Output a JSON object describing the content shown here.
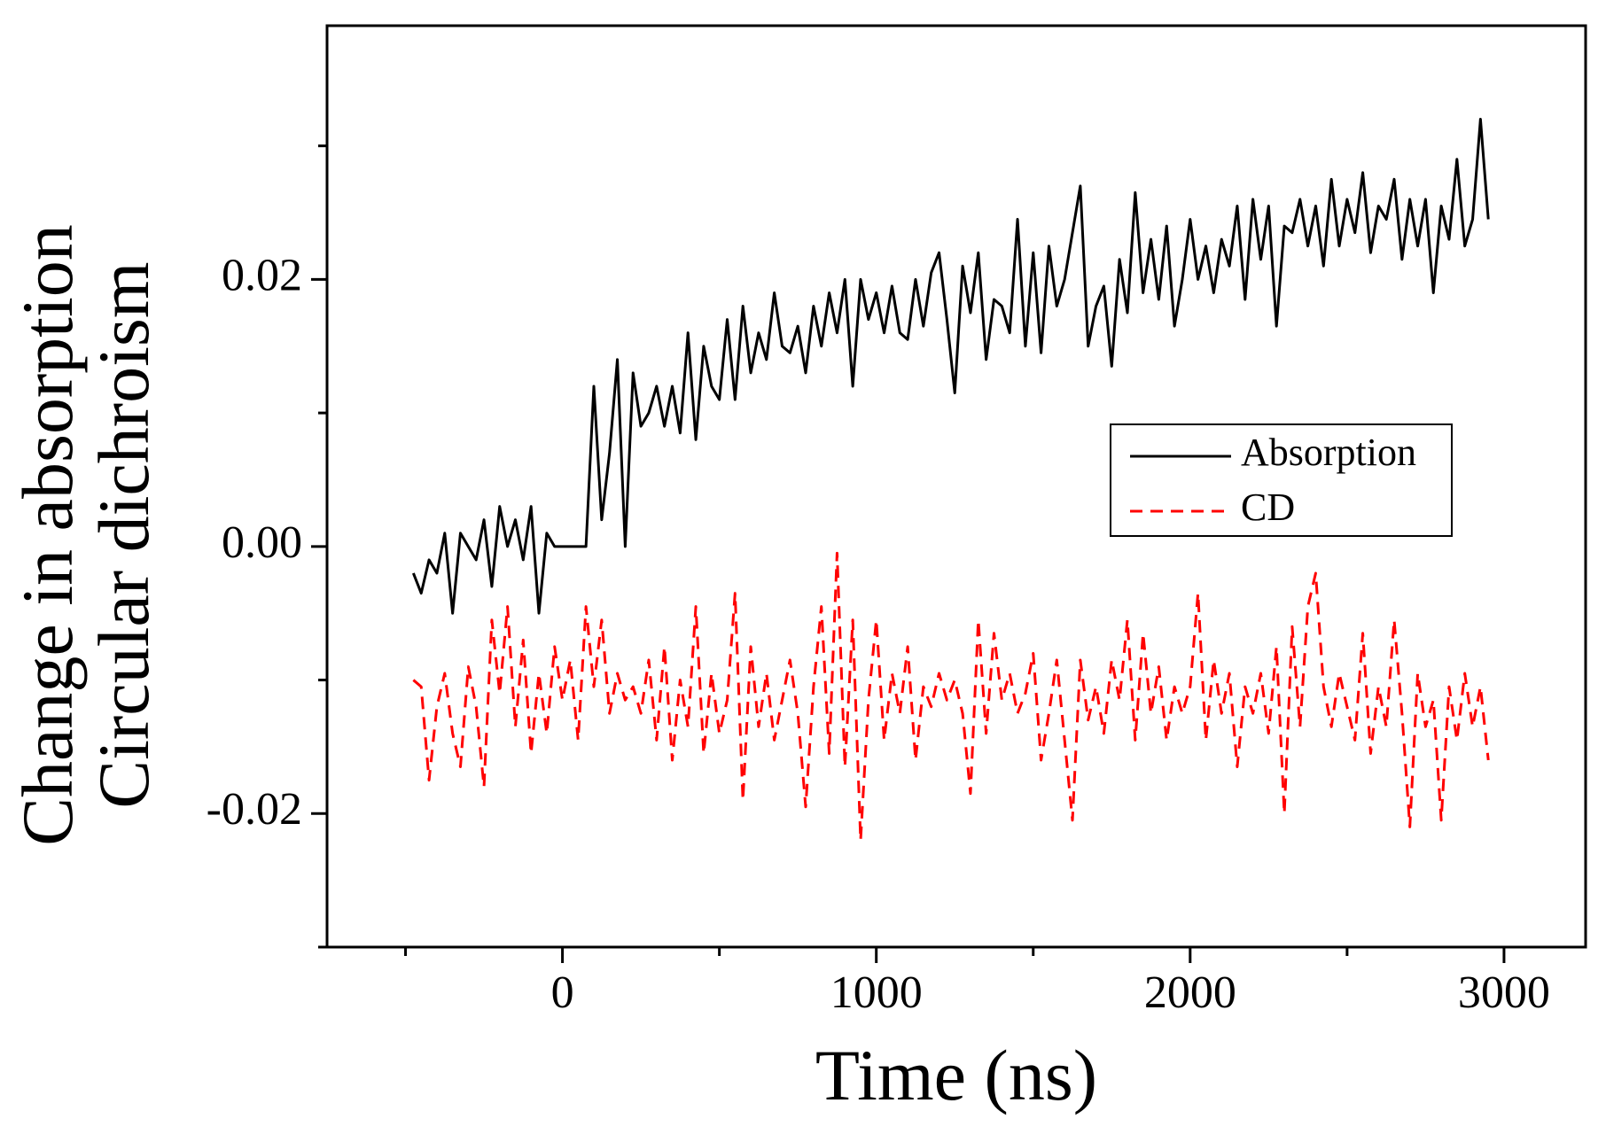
{
  "chart_data": {
    "type": "line",
    "xlabel": "Time (ns)",
    "ylabel": [
      "Change in absorption",
      "Circular dichroism"
    ],
    "xlim": [
      -750,
      3260
    ],
    "ylim": [
      -0.03,
      0.039
    ],
    "xticks": [
      0,
      1000,
      2000,
      3000
    ],
    "xminor_ticks": [
      -500,
      500,
      1500,
      2500
    ],
    "yticks": [
      -0.02,
      {
        "value": 0,
        "label": "0.00"
      },
      0.02
    ],
    "yminor_ticks": [
      -0.03,
      -0.01,
      0.01,
      0.03
    ],
    "legend": "upper right",
    "x": [
      -475,
      -450,
      -425,
      -400,
      -375,
      -350,
      -325,
      -300,
      -275,
      -250,
      -225,
      -200,
      -175,
      -150,
      -125,
      -100,
      -75,
      -50,
      -25,
      0,
      25,
      50,
      75,
      100,
      125,
      150,
      175,
      200,
      225,
      250,
      275,
      300,
      325,
      350,
      375,
      400,
      425,
      450,
      475,
      500,
      525,
      550,
      575,
      600,
      625,
      650,
      675,
      700,
      725,
      750,
      775,
      800,
      825,
      850,
      875,
      900,
      925,
      950,
      975,
      1000,
      1025,
      1050,
      1075,
      1100,
      1125,
      1150,
      1175,
      1200,
      1225,
      1250,
      1275,
      1300,
      1325,
      1350,
      1375,
      1400,
      1425,
      1450,
      1475,
      1500,
      1525,
      1550,
      1575,
      1600,
      1625,
      1650,
      1675,
      1700,
      1725,
      1750,
      1775,
      1800,
      1825,
      1850,
      1875,
      1900,
      1925,
      1950,
      1975,
      2000,
      2025,
      2050,
      2075,
      2100,
      2125,
      2150,
      2175,
      2200,
      2225,
      2250,
      2275,
      2300,
      2325,
      2350,
      2375,
      2400,
      2425,
      2450,
      2475,
      2500,
      2525,
      2550,
      2575,
      2600,
      2625,
      2650,
      2675,
      2700,
      2725,
      2750,
      2775,
      2800,
      2825,
      2850,
      2875,
      2900,
      2925,
      2950
    ],
    "series": [
      {
        "name": "Absorption",
        "color": "#000000",
        "linestyle": "solid",
        "values": [
          -0.002,
          -0.0035,
          -0.001,
          -0.002,
          0.001,
          -0.005,
          0.001,
          0,
          -0.001,
          0.002,
          -0.003,
          0.003,
          0,
          0.002,
          -0.001,
          0.003,
          -0.005,
          0.001,
          0,
          0,
          0,
          0,
          0,
          0.012,
          0.002,
          0.007,
          0.014,
          0,
          0.013,
          0.009,
          0.01,
          0.012,
          0.009,
          0.012,
          0.0085,
          0.016,
          0.008,
          0.015,
          0.012,
          0.011,
          0.017,
          0.011,
          0.018,
          0.013,
          0.016,
          0.014,
          0.019,
          0.015,
          0.0145,
          0.0165,
          0.013,
          0.018,
          0.015,
          0.019,
          0.016,
          0.02,
          0.012,
          0.02,
          0.017,
          0.019,
          0.016,
          0.0195,
          0.016,
          0.0155,
          0.02,
          0.0165,
          0.0205,
          0.022,
          0.017,
          0.0115,
          0.021,
          0.0175,
          0.022,
          0.014,
          0.0185,
          0.018,
          0.016,
          0.0245,
          0.015,
          0.022,
          0.0145,
          0.0225,
          0.018,
          0.02,
          0.0235,
          0.027,
          0.015,
          0.018,
          0.0195,
          0.0135,
          0.0215,
          0.0175,
          0.0265,
          0.019,
          0.023,
          0.0185,
          0.024,
          0.0165,
          0.02,
          0.0245,
          0.02,
          0.0225,
          0.019,
          0.023,
          0.021,
          0.0255,
          0.0185,
          0.026,
          0.0215,
          0.0255,
          0.0165,
          0.024,
          0.0235,
          0.026,
          0.0225,
          0.0255,
          0.021,
          0.0275,
          0.0225,
          0.026,
          0.0235,
          0.028,
          0.022,
          0.0255,
          0.0245,
          0.0275,
          0.0215,
          0.026,
          0.0225,
          0.026,
          0.019,
          0.0255,
          0.023,
          0.029,
          0.0225,
          0.0245,
          0.032,
          0.0245
        ]
      },
      {
        "name": "CD",
        "color": "#ff0000",
        "linestyle": "dashed",
        "values": [
          -0.01,
          -0.0105,
          -0.0175,
          -0.012,
          -0.0095,
          -0.014,
          -0.0165,
          -0.009,
          -0.012,
          -0.018,
          -0.0055,
          -0.011,
          -0.0045,
          -0.0135,
          -0.007,
          -0.0155,
          -0.0095,
          -0.014,
          -0.0075,
          -0.0115,
          -0.0085,
          -0.0145,
          -0.0045,
          -0.0105,
          -0.0055,
          -0.0125,
          -0.0095,
          -0.0115,
          -0.0105,
          -0.0125,
          -0.0085,
          -0.0145,
          -0.0075,
          -0.016,
          -0.01,
          -0.0135,
          -0.0045,
          -0.0155,
          -0.0095,
          -0.014,
          -0.0115,
          -0.0035,
          -0.019,
          -0.0075,
          -0.0135,
          -0.0095,
          -0.0145,
          -0.0115,
          -0.0085,
          -0.0125,
          -0.0195,
          -0.0105,
          -0.0045,
          -0.0155,
          -0.0005,
          -0.0165,
          -0.0055,
          -0.022,
          -0.0115,
          -0.0055,
          -0.0145,
          -0.0095,
          -0.0125,
          -0.0075,
          -0.016,
          -0.0105,
          -0.012,
          -0.0095,
          -0.0115,
          -0.01,
          -0.0125,
          -0.0185,
          -0.0055,
          -0.014,
          -0.0065,
          -0.0115,
          -0.0095,
          -0.0125,
          -0.011,
          -0.008,
          -0.016,
          -0.0125,
          -0.0085,
          -0.0145,
          -0.0205,
          -0.0085,
          -0.013,
          -0.0105,
          -0.014,
          -0.0085,
          -0.0115,
          -0.0055,
          -0.0145,
          -0.0065,
          -0.0125,
          -0.009,
          -0.0145,
          -0.0105,
          -0.0125,
          -0.0105,
          -0.0035,
          -0.0145,
          -0.0085,
          -0.0125,
          -0.0095,
          -0.0165,
          -0.0105,
          -0.0125,
          -0.0095,
          -0.014,
          -0.0075,
          -0.02,
          -0.006,
          -0.0135,
          -0.0045,
          -0.002,
          -0.0105,
          -0.0135,
          -0.0095,
          -0.012,
          -0.0145,
          -0.0065,
          -0.0155,
          -0.0105,
          -0.0135,
          -0.0055,
          -0.0125,
          -0.021,
          -0.0095,
          -0.0135,
          -0.0115,
          -0.0205,
          -0.0105,
          -0.0145,
          -0.0095,
          -0.0135,
          -0.0105,
          -0.016
        ]
      }
    ]
  }
}
